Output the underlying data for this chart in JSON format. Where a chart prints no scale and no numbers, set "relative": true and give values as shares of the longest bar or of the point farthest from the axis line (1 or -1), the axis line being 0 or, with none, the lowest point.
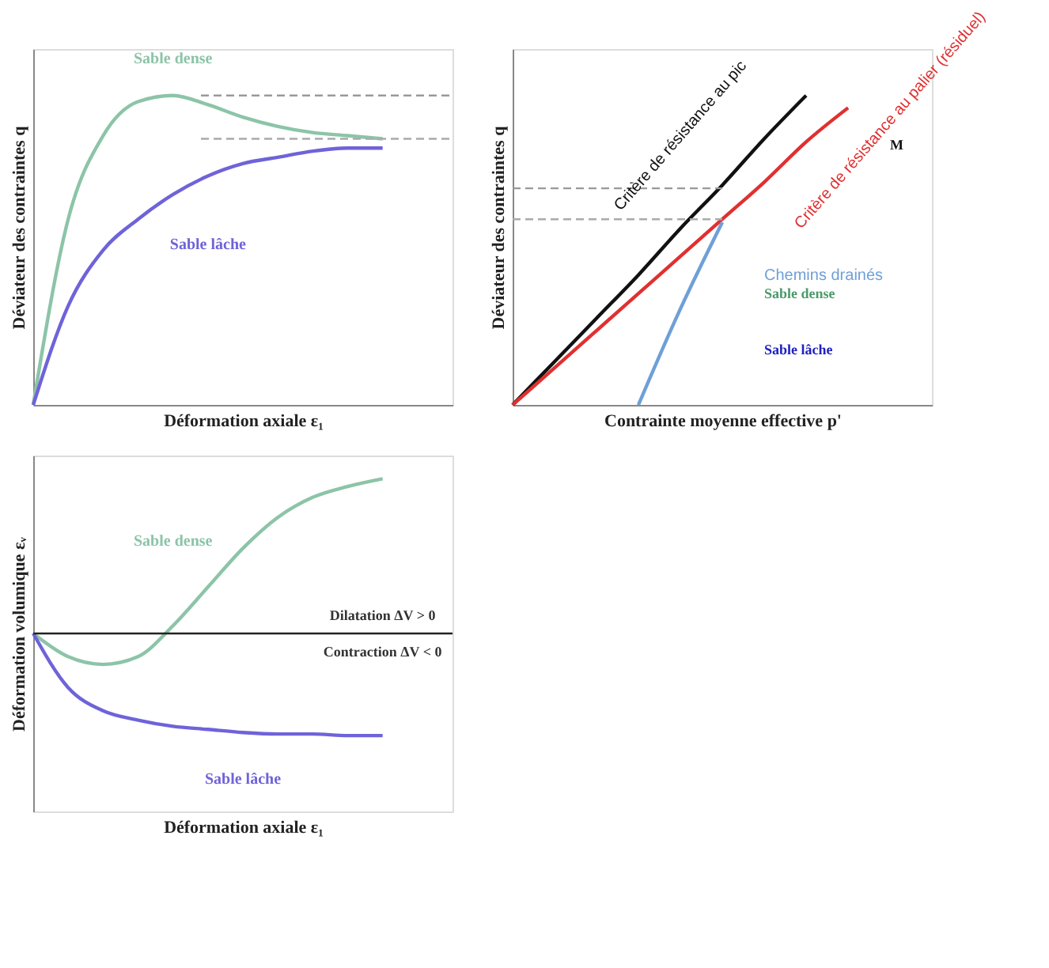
{
  "chart_data": [
    {
      "type": "line",
      "relative": true,
      "grid": false,
      "legend": false,
      "tick_labels": false,
      "xlabel": "Déformation axiale ε₁",
      "ylabel": "Déviateur des contraintes q",
      "categories": [
        null,
        null,
        null,
        null,
        null,
        null,
        null,
        null,
        null,
        null,
        null,
        null,
        null
      ],
      "series": [
        {
          "name": "Sable dense",
          "color": "#8cc4a8",
          "values": [
            0,
            0.6,
            0.87,
            0.98,
            1.0,
            0.97,
            0.93,
            0.9,
            0.88,
            0.87,
            0.86,
            null,
            null
          ]
        },
        {
          "name": "Sable lâche",
          "color": "#6f63d9",
          "values": [
            0,
            0.32,
            0.5,
            0.6,
            0.68,
            0.74,
            0.78,
            0.8,
            0.82,
            0.83,
            0.83,
            null,
            null
          ]
        }
      ],
      "ref_lines": [
        {
          "axis": "y",
          "value": 1.0,
          "color": "#999999",
          "line_style": "dashed"
        },
        {
          "axis": "y",
          "value": 0.86,
          "color": "#aaaaaa",
          "line_style": "dashed"
        }
      ]
    },
    {
      "type": "line",
      "relative": true,
      "grid": false,
      "legend": false,
      "tick_labels": false,
      "xlabel": "Contrainte moyenne effective p'",
      "ylabel": "Déviateur des contraintes q",
      "categories": [
        null,
        null,
        null,
        null,
        null,
        null,
        null,
        null,
        null,
        null,
        null
      ],
      "series": [
        {
          "name": "Critère de résistance au pic",
          "color": "#111111",
          "values": [
            0,
            0.14,
            0.28,
            0.42,
            0.57,
            0.71,
            0.86,
            1.0,
            null,
            null,
            null
          ]
        },
        {
          "name": "Critère de résistance au palier (résiduel)",
          "color": "#e03030",
          "values": [
            0,
            0.12,
            0.24,
            0.36,
            0.48,
            0.6,
            0.72,
            0.85,
            0.96,
            null,
            null
          ]
        },
        {
          "name": "Chemins drainés",
          "color": "#6f9fd8",
          "values": [
            null,
            null,
            null,
            0,
            0.31,
            0.59,
            null,
            null,
            null,
            null,
            null
          ]
        }
      ],
      "ref_lines": [
        {
          "axis": "y",
          "value": 0.7,
          "color": "#999999",
          "line_style": "dashed"
        },
        {
          "axis": "y",
          "value": 0.6,
          "color": "#aaaaaa",
          "line_style": "dashed"
        }
      ],
      "annotations": [
        "M",
        "Sable dense",
        "Sable lâche"
      ]
    },
    {
      "type": "line",
      "relative": true,
      "grid": false,
      "legend": false,
      "tick_labels": false,
      "xlabel": "Déformation axiale ε₁",
      "ylabel": "Déformation volumique εᵥ",
      "categories": [
        null,
        null,
        null,
        null,
        null,
        null,
        null,
        null,
        null,
        null,
        null,
        null,
        null
      ],
      "series": [
        {
          "name": "Sable dense",
          "color": "#8cc4a8",
          "values": [
            0,
            -0.15,
            -0.2,
            -0.15,
            0.05,
            0.3,
            0.55,
            0.75,
            0.88,
            0.95,
            1.0,
            null,
            null
          ]
        },
        {
          "name": "Sable lâche",
          "color": "#6f63d9",
          "values": [
            0,
            -0.35,
            -0.5,
            -0.56,
            -0.6,
            -0.62,
            -0.64,
            -0.65,
            -0.65,
            -0.66,
            -0.66,
            null,
            null
          ]
        }
      ],
      "annotations": [
        "Dilatation ΔV > 0",
        "Contraction ΔV < 0"
      ]
    }
  ]
}
